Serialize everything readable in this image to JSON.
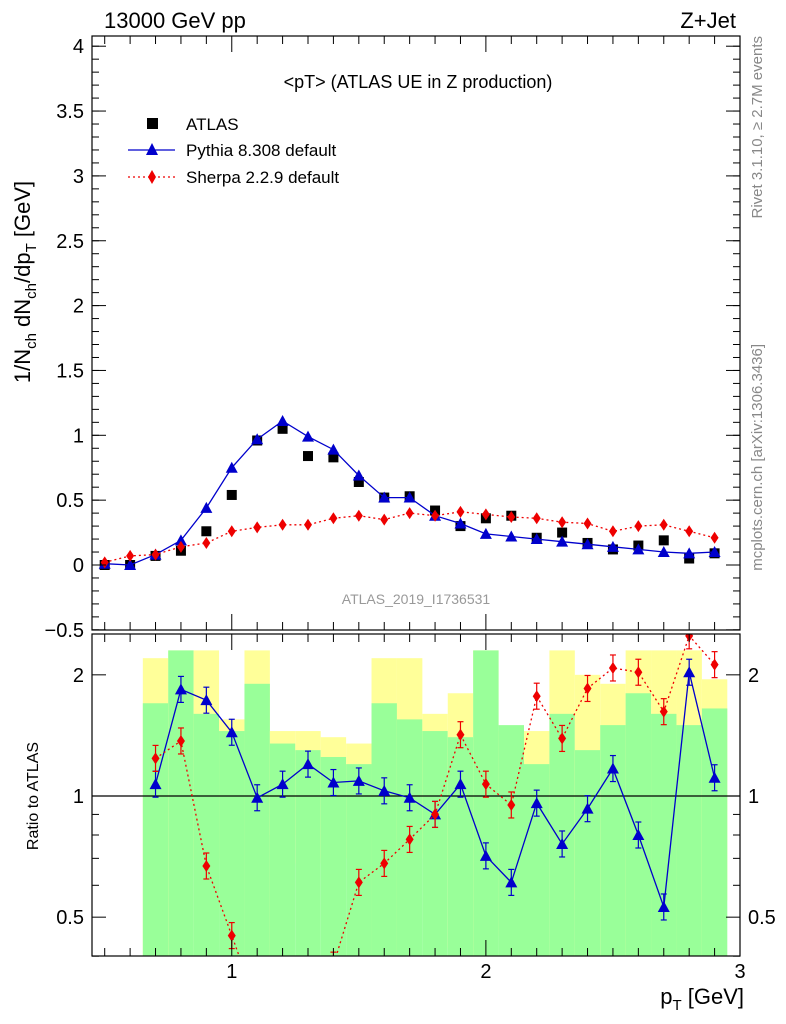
{
  "header": {
    "left": "13000 GeV pp",
    "right": "Z+Jet"
  },
  "side_labels": {
    "rivet": "Rivet 3.1.10, ≥ 2.7M events",
    "mcplots": "mcplots.cern.ch [arXiv:1306.3436]"
  },
  "watermark": "ATLAS_2019_I1736531",
  "colors": {
    "data": "#000000",
    "pythia": "#0000cc",
    "sherpa": "#ee0000",
    "band_inner": "#99ff99",
    "band_outer": "#ffff99"
  },
  "chart_data": [
    {
      "type": "scatter",
      "title": "<pT> (ATLAS UE in Z production)",
      "xlabel": "p_T [GeV]",
      "ylabel": "1/N_ch dN_ch/dp_T [GeV]",
      "xlim": [
        0.45,
        3.0
      ],
      "ylim": [
        -0.5,
        4.1
      ],
      "yticks": [
        "−0.5",
        "0",
        "0.5",
        "1",
        "1.5",
        "2",
        "2.5",
        "3",
        "3.5",
        "4"
      ],
      "legend_position": "top-left",
      "x": [
        0.5,
        0.6,
        0.7,
        0.8,
        0.9,
        1.0,
        1.1,
        1.2,
        1.3,
        1.4,
        1.5,
        1.6,
        1.7,
        1.8,
        1.9,
        2.0,
        2.1,
        2.2,
        2.3,
        2.4,
        2.5,
        2.6,
        2.7,
        2.8,
        2.9
      ],
      "series": [
        {
          "name": "ATLAS",
          "style": "data",
          "values": [
            0.0,
            0.0,
            0.07,
            0.11,
            0.26,
            0.54,
            0.96,
            1.05,
            0.84,
            0.83,
            0.64,
            0.52,
            0.53,
            0.42,
            0.3,
            0.36,
            0.38,
            0.21,
            0.25,
            0.17,
            0.12,
            0.15,
            0.19,
            0.05,
            0.09
          ]
        },
        {
          "name": "Pythia 8.308 default",
          "style": "pythia",
          "values": [
            0.01,
            0.0,
            0.08,
            0.19,
            0.44,
            0.75,
            0.97,
            1.11,
            0.99,
            0.89,
            0.69,
            0.52,
            0.52,
            0.38,
            0.32,
            0.24,
            0.22,
            0.2,
            0.18,
            0.16,
            0.14,
            0.12,
            0.1,
            0.09,
            0.1
          ]
        },
        {
          "name": "Sherpa 2.2.9 default",
          "style": "sherpa",
          "values": [
            0.02,
            0.07,
            0.08,
            0.14,
            0.17,
            0.26,
            0.29,
            0.31,
            0.31,
            0.36,
            0.38,
            0.35,
            0.4,
            0.38,
            0.41,
            0.39,
            0.37,
            0.36,
            0.33,
            0.32,
            0.26,
            0.3,
            0.31,
            0.26,
            0.21
          ]
        }
      ]
    },
    {
      "type": "line",
      "ylabel": "Ratio to ATLAS",
      "xlabel": "p_T [GeV]",
      "xlim": [
        0.45,
        3.0
      ],
      "ylim": [
        0.35,
        2.3
      ],
      "xticks": [
        "1",
        "2",
        "3"
      ],
      "yticks": [
        "0.5",
        "1",
        "2"
      ],
      "bands": {
        "x_edges": [
          0.65,
          0.75,
          0.85,
          0.95,
          1.05,
          1.15,
          1.25,
          1.35,
          1.45,
          1.55,
          1.65,
          1.75,
          1.85,
          1.95,
          2.05,
          2.15,
          2.25,
          2.35,
          2.45,
          2.55,
          2.65,
          2.75,
          2.85,
          2.95
        ],
        "inner_low": [
          0.3,
          0.3,
          0.3,
          0.3,
          0.3,
          0.3,
          0.3,
          0.3,
          0.3,
          0.3,
          0.3,
          0.3,
          0.3,
          0.3,
          0.3,
          0.3,
          0.3,
          0.3,
          0.3,
          0.3,
          0.3,
          0.3,
          0.3
        ],
        "inner_high": [
          1.7,
          2.3,
          1.6,
          1.45,
          1.9,
          1.35,
          1.3,
          1.25,
          1.2,
          1.7,
          1.55,
          1.45,
          1.4,
          2.3,
          1.5,
          1.2,
          1.6,
          1.3,
          1.5,
          1.8,
          1.6,
          1.5,
          1.65
        ],
        "outer_low": [
          0.3,
          0.3,
          0.7,
          0.7,
          0.3,
          0.8,
          0.68,
          0.7,
          0.7,
          0.3,
          0.72,
          0.7,
          0.42,
          0.3,
          0.45,
          0.8,
          0.3,
          0.55,
          0.3,
          0.3,
          0.3,
          0.3,
          0.55
        ],
        "outer_high": [
          2.2,
          2.3,
          2.3,
          1.55,
          2.3,
          1.45,
          1.45,
          1.4,
          1.35,
          2.2,
          2.2,
          1.6,
          1.8,
          2.3,
          1.45,
          1.45,
          2.3,
          2.0,
          1.9,
          2.3,
          2.3,
          2.3,
          1.95
        ]
      },
      "ratio_x": [
        0.7,
        0.8,
        0.9,
        1.0,
        1.1,
        1.2,
        1.3,
        1.4,
        1.5,
        1.6,
        1.7,
        1.8,
        1.9,
        2.0,
        2.1,
        2.2,
        2.3,
        2.4,
        2.5,
        2.6,
        2.7,
        2.8,
        2.9
      ],
      "series": [
        {
          "name": "Pythia 8.308 default",
          "style": "pythia",
          "values": [
            1.07,
            1.84,
            1.73,
            1.44,
            0.99,
            1.07,
            1.2,
            1.08,
            1.09,
            1.03,
            0.99,
            0.9,
            1.07,
            0.71,
            0.61,
            0.96,
            0.76,
            0.93,
            1.17,
            0.8,
            0.53,
            2.03,
            1.11
          ]
        },
        {
          "name": "Sherpa 2.2.9 default",
          "style": "sherpa",
          "values": [
            1.24,
            1.37,
            0.67,
            0.45,
            0.3,
            0.3,
            0.3,
            0.38,
            0.61,
            0.68,
            0.78,
            0.9,
            1.42,
            1.07,
            0.95,
            1.77,
            1.39,
            1.85,
            2.08,
            2.03,
            1.62,
            2.5,
            2.12
          ]
        }
      ]
    }
  ]
}
